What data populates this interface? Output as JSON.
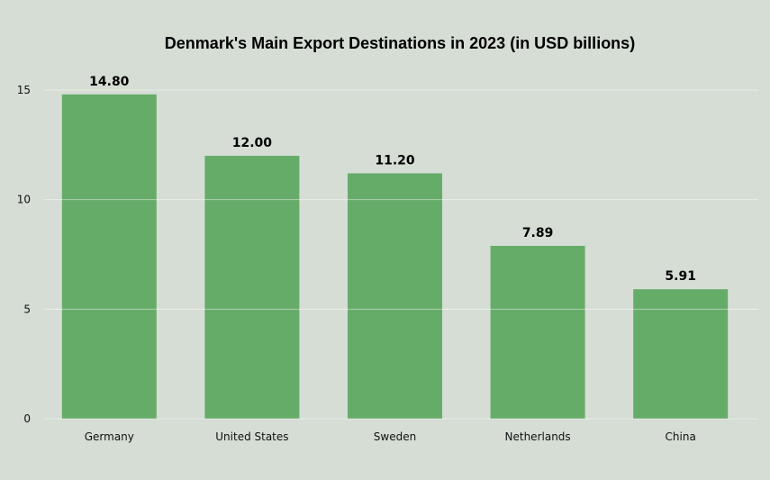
{
  "chart_data": {
    "type": "bar",
    "title": "Denmark's Main Export Destinations in 2023 (in USD billions)",
    "xlabel": "",
    "ylabel": "",
    "categories": [
      "Germany",
      "United States",
      "Sweden",
      "Netherlands",
      "China"
    ],
    "values": [
      14.8,
      12.0,
      11.2,
      7.89,
      5.91
    ],
    "value_labels": [
      "14.80",
      "12.00",
      "11.20",
      "7.89",
      "5.91"
    ],
    "ylim": [
      0,
      15
    ],
    "yticks": [
      0,
      5,
      10,
      15
    ],
    "ytick_labels": [
      "0",
      "5",
      "10",
      "15"
    ],
    "grid": true,
    "legend": "none"
  },
  "colors": {
    "background": "#d5ddd5",
    "bar": "#66ac69",
    "grid": "#e8ece8"
  }
}
